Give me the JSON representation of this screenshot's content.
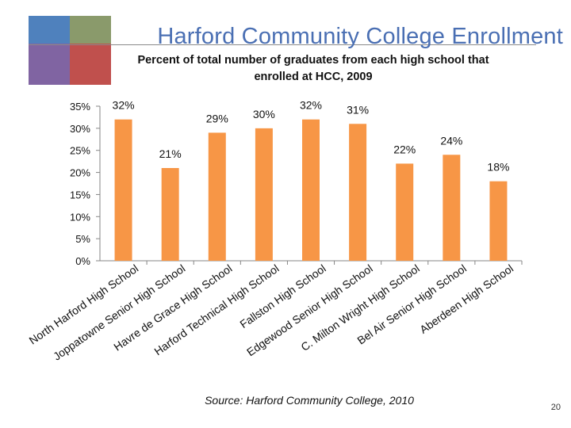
{
  "header": {
    "title": "Harford Community College Enrollment",
    "logo_colors": [
      "#4f81bd",
      "#8a9a6b",
      "#8064a2",
      "#c0504d"
    ]
  },
  "chart_data": {
    "type": "bar",
    "title": "Percent of total number of graduates from each high school that enrolled at HCC, 2009",
    "categories": [
      "North Harford High School",
      "Joppatowne Senior High School",
      "Havre de Grace High School",
      "Harford Technical High School",
      "Fallston High School",
      "Edgewood Senior High School",
      "C. Milton Wright High School",
      "Bel Air Senior High School",
      "Aberdeen High School"
    ],
    "values": [
      32,
      21,
      29,
      30,
      32,
      31,
      22,
      24,
      18
    ],
    "data_labels": [
      "32%",
      "21%",
      "29%",
      "30%",
      "32%",
      "31%",
      "22%",
      "24%",
      "18%"
    ],
    "y_ticks": [
      "0%",
      "5%",
      "10%",
      "15%",
      "20%",
      "25%",
      "30%",
      "35%"
    ],
    "ylim": [
      0,
      35
    ],
    "bar_color": "#f79646",
    "grid": false,
    "legend": "none"
  },
  "footer": {
    "source": "Source: Harford Community College, 2010",
    "page_number": "20"
  }
}
